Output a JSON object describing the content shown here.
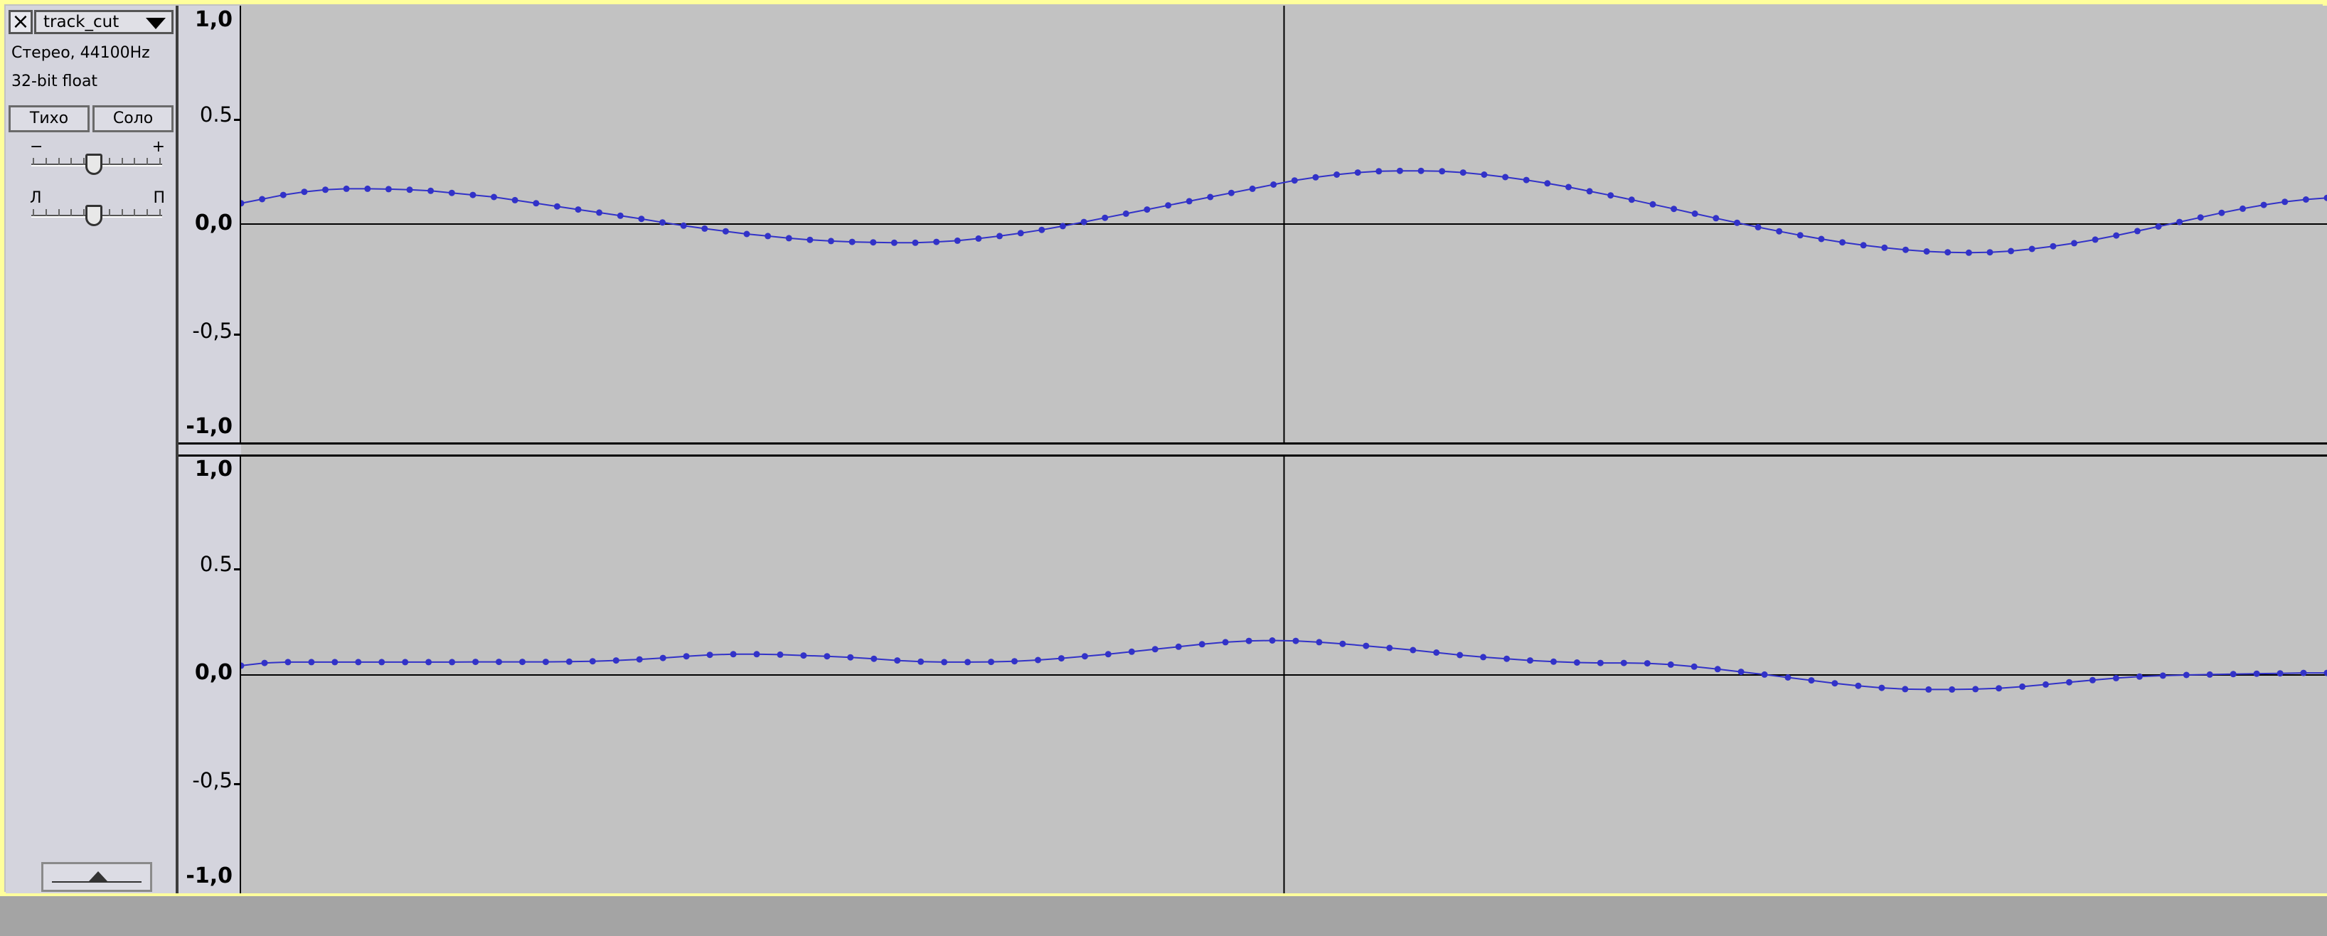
{
  "track": {
    "name": "track_cut",
    "format": "Стерео, 44100Hz",
    "bit_depth": "32-bit float",
    "mute_label": "Тихо",
    "solo_label": "Соло",
    "gain_minus": "−",
    "gain_plus": "+",
    "pan_left": "Л",
    "pan_right": "П",
    "close_icon": "×"
  },
  "icons": {
    "close": "close-icon",
    "menu": "chevron-down-icon",
    "collapse": "collapse-arrow-icon"
  },
  "rulers": {
    "labels": [
      "1,0",
      "0.5",
      "0,0",
      "-0,5",
      "-1,0"
    ]
  },
  "colors": {
    "waveform": "#3232c8",
    "background": "#c2c2c2",
    "focus_border": "#ffff9c"
  },
  "channels": [
    {
      "name": "left",
      "samples": [
        0.1,
        0.12,
        0.14,
        0.155,
        0.165,
        0.17,
        0.17,
        0.168,
        0.165,
        0.16,
        0.15,
        0.14,
        0.13,
        0.115,
        0.1,
        0.085,
        0.07,
        0.055,
        0.04,
        0.025,
        0.008,
        -0.008,
        -0.022,
        -0.035,
        -0.048,
        -0.058,
        -0.068,
        -0.076,
        -0.082,
        -0.086,
        -0.088,
        -0.09,
        -0.09,
        -0.086,
        -0.08,
        -0.07,
        -0.058,
        -0.044,
        -0.028,
        -0.01,
        0.01,
        0.03,
        0.05,
        0.07,
        0.09,
        0.11,
        0.13,
        0.15,
        0.17,
        0.19,
        0.21,
        0.225,
        0.238,
        0.248,
        0.254,
        0.256,
        0.256,
        0.254,
        0.248,
        0.238,
        0.226,
        0.212,
        0.196,
        0.178,
        0.158,
        0.138,
        0.117,
        0.095,
        0.073,
        0.05,
        0.028,
        0.006,
        -0.015,
        -0.035,
        -0.054,
        -0.072,
        -0.088,
        -0.102,
        -0.114,
        -0.124,
        -0.132,
        -0.136,
        -0.138,
        -0.136,
        -0.13,
        -0.12,
        -0.107,
        -0.092,
        -0.075,
        -0.055,
        -0.034,
        -0.012,
        0.01,
        0.032,
        0.054,
        0.074,
        0.092,
        0.107,
        0.118,
        0.126
      ]
    },
    {
      "name": "right",
      "samples": [
        0.045,
        0.058,
        0.062,
        0.062,
        0.062,
        0.062,
        0.062,
        0.062,
        0.062,
        0.062,
        0.063,
        0.063,
        0.063,
        0.063,
        0.064,
        0.066,
        0.07,
        0.075,
        0.082,
        0.09,
        0.097,
        0.1,
        0.1,
        0.098,
        0.094,
        0.09,
        0.085,
        0.078,
        0.07,
        0.064,
        0.062,
        0.062,
        0.063,
        0.066,
        0.072,
        0.08,
        0.09,
        0.1,
        0.112,
        0.124,
        0.136,
        0.148,
        0.158,
        0.164,
        0.166,
        0.164,
        0.158,
        0.15,
        0.14,
        0.13,
        0.12,
        0.108,
        0.096,
        0.086,
        0.078,
        0.07,
        0.064,
        0.06,
        0.058,
        0.058,
        0.056,
        0.05,
        0.04,
        0.028,
        0.015,
        0.002,
        -0.012,
        -0.026,
        -0.04,
        -0.052,
        -0.062,
        -0.068,
        -0.07,
        -0.07,
        -0.068,
        -0.064,
        -0.056,
        -0.046,
        -0.035,
        -0.025,
        -0.015,
        -0.008,
        -0.003,
        0.0,
        0.002,
        0.004,
        0.006,
        0.008,
        0.01,
        0.01
      ]
    }
  ],
  "cursor": {
    "position_fraction": 0.5
  }
}
